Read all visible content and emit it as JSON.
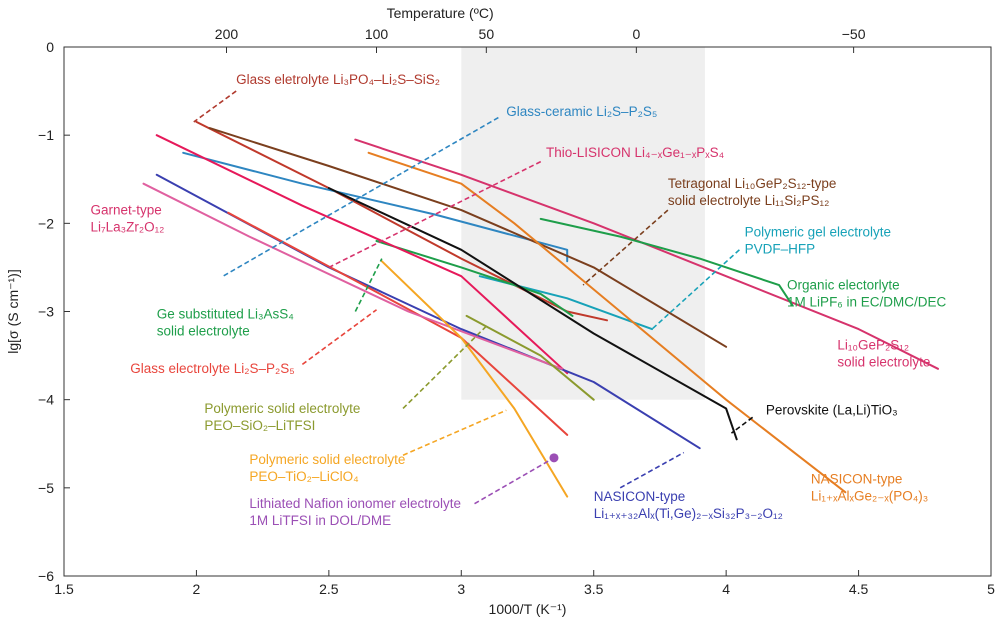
{
  "chart_data": {
    "type": "line",
    "xlabel": "1000/T (K⁻¹)",
    "ylabel": "lg[σ (S cm⁻¹)]",
    "top_axis_label": "Temperature (ºC)",
    "xlim": [
      1.5,
      5
    ],
    "ylim": [
      -6,
      0
    ],
    "x_ticks": [
      1.5,
      2,
      2.5,
      3,
      3.5,
      4,
      4.5,
      5
    ],
    "x_tick_labels": [
      "1.5",
      "2",
      "2.5",
      "3",
      "3.5",
      "4",
      "4.5",
      "5"
    ],
    "y_ticks": [
      0,
      -1,
      -2,
      -3,
      -4,
      -5,
      -6
    ],
    "y_tick_labels": [
      "0",
      "−1",
      "−2",
      "−3",
      "−4",
      "−5",
      "−6"
    ],
    "top_ticks": [
      200,
      100,
      50,
      0,
      -50
    ],
    "top_tick_labels": [
      "200",
      "100",
      "50",
      "0",
      "−50"
    ],
    "shaded_region": {
      "x": [
        3.0,
        3.92
      ],
      "y": [
        -4.0,
        0
      ]
    },
    "grid": false,
    "legend": "none",
    "series": [
      {
        "color": "#c0392b",
        "points": [
          [
            2.0,
            -0.85
          ],
          [
            2.5,
            -1.6
          ],
          [
            3.0,
            -2.4
          ],
          [
            3.4,
            -3.0
          ],
          [
            3.55,
            -3.1
          ]
        ]
      },
      {
        "color": "#2e86c1",
        "points": [
          [
            1.95,
            -1.2
          ],
          [
            2.4,
            -1.55
          ],
          [
            2.9,
            -1.9
          ],
          [
            3.4,
            -2.3
          ],
          [
            3.4,
            -2.43
          ]
        ]
      },
      {
        "color": "#d6336c",
        "points": [
          [
            2.6,
            -1.05
          ],
          [
            3.0,
            -1.45
          ],
          [
            3.5,
            -2.0
          ],
          [
            4.0,
            -2.6
          ],
          [
            4.5,
            -3.2
          ],
          [
            4.8,
            -3.65
          ]
        ]
      },
      {
        "color": "#7b3f1e",
        "points": [
          [
            2.05,
            -0.92
          ],
          [
            2.5,
            -1.35
          ],
          [
            3.0,
            -1.85
          ],
          [
            3.5,
            -2.5
          ],
          [
            4.0,
            -3.4
          ]
        ]
      },
      {
        "color": "#17a2b8",
        "points": [
          [
            3.07,
            -2.6
          ],
          [
            3.4,
            -2.85
          ],
          [
            3.72,
            -3.2
          ]
        ]
      },
      {
        "color": "#1e9e4a",
        "points": [
          [
            3.3,
            -1.95
          ],
          [
            3.6,
            -2.15
          ],
          [
            3.9,
            -2.4
          ],
          [
            4.2,
            -2.7
          ],
          [
            4.25,
            -2.93
          ]
        ]
      },
      {
        "color": "#1e9e4a",
        "points": [
          [
            2.68,
            -2.2
          ],
          [
            3.0,
            -2.5
          ],
          [
            3.3,
            -2.8
          ],
          [
            3.42,
            -3.05
          ]
        ]
      },
      {
        "color": "#e67e22",
        "points": [
          [
            2.65,
            -1.2
          ],
          [
            3.0,
            -1.55
          ],
          [
            3.2,
            -2.0
          ],
          [
            3.6,
            -3.0
          ],
          [
            4.0,
            -4.0
          ],
          [
            4.45,
            -5.05
          ]
        ]
      },
      {
        "color": "#111111",
        "points": [
          [
            2.5,
            -1.6
          ],
          [
            3.0,
            -2.3
          ],
          [
            3.5,
            -3.25
          ],
          [
            4.0,
            -4.1
          ],
          [
            4.04,
            -4.45
          ]
        ]
      },
      {
        "color": "#e6195a",
        "points": [
          [
            1.85,
            -1.0
          ],
          [
            2.4,
            -1.8
          ],
          [
            3.0,
            -2.6
          ],
          [
            3.4,
            -3.7
          ]
        ]
      },
      {
        "color": "#3a3fb0",
        "points": [
          [
            1.85,
            -1.45
          ],
          [
            2.5,
            -2.5
          ],
          [
            3.0,
            -3.2
          ],
          [
            3.5,
            -3.8
          ],
          [
            3.9,
            -4.55
          ]
        ]
      },
      {
        "color": "#e8453c",
        "points": [
          [
            2.12,
            -1.88
          ],
          [
            2.6,
            -2.65
          ],
          [
            3.0,
            -3.3
          ],
          [
            3.4,
            -4.4
          ]
        ]
      },
      {
        "color": "#e060a0",
        "points": [
          [
            1.8,
            -1.55
          ],
          [
            2.2,
            -2.15
          ],
          [
            2.8,
            -3.0
          ],
          [
            3.38,
            -3.65
          ]
        ]
      },
      {
        "color": "#8b9a2e",
        "points": [
          [
            3.02,
            -3.05
          ],
          [
            3.3,
            -3.5
          ],
          [
            3.5,
            -4.0
          ]
        ]
      },
      {
        "color": "#f5a623",
        "points": [
          [
            2.7,
            -2.43
          ],
          [
            3.0,
            -3.3
          ],
          [
            3.2,
            -4.1
          ],
          [
            3.4,
            -5.1
          ]
        ]
      }
    ],
    "marker": {
      "x": 3.35,
      "y": -4.66,
      "color": "#9b4fb5"
    },
    "annotations": [
      {
        "lines": [
          "Glass eletrolyte Li₃PO₄–Li₂S–SiS₂"
        ],
        "color": "#b03a2e",
        "ax": 2.15,
        "ay": -0.42,
        "anchor": "start",
        "leader": [
          [
            2.15,
            -0.5
          ],
          [
            1.99,
            -0.85
          ]
        ]
      },
      {
        "lines": [
          "Glass-ceramic Li₂S–P₂S₅"
        ],
        "color": "#2e86c1",
        "ax": 3.17,
        "ay": -0.78,
        "anchor": "start",
        "leader": [
          [
            3.14,
            -0.8
          ],
          [
            2.1,
            -2.6
          ]
        ]
      },
      {
        "lines": [
          "Thio-LISICON Li₄₋ₓGe₁₋ₓPₓS₄"
        ],
        "color": "#d6336c",
        "ax": 3.32,
        "ay": -1.25,
        "anchor": "start",
        "leader": [
          [
            3.3,
            -1.3
          ],
          [
            2.5,
            -2.5
          ]
        ]
      },
      {
        "lines": [
          "Tetragonal Li₁₀GeP₂S₁₂-type",
          "solid electrolyte Li₁₁Si₂PS₁₂"
        ],
        "color": "#7b3f1e",
        "ax": 3.78,
        "ay": -1.6,
        "anchor": "start",
        "leader": [
          [
            3.78,
            -1.85
          ],
          [
            3.46,
            -2.7
          ]
        ]
      },
      {
        "lines": [
          "Polymeric gel electrolyte",
          "PVDF–HFP"
        ],
        "color": "#17a2b8",
        "ax": 4.07,
        "ay": -2.15,
        "anchor": "start",
        "leader": [
          [
            4.05,
            -2.3
          ],
          [
            3.72,
            -3.2
          ]
        ]
      },
      {
        "lines": [
          "Organic electorlyte",
          "1M LiPF₆ in EC/DMC/DEC"
        ],
        "color": "#1e9e4a",
        "ax": 4.23,
        "ay": -2.75,
        "anchor": "start",
        "leader": null
      },
      {
        "lines": [
          "Garnet-type",
          "Li₇La₃Zr₂O₁₂"
        ],
        "color": "#d6336c",
        "ax": 1.6,
        "ay": -1.9,
        "anchor": "start",
        "leader": null
      },
      {
        "lines": [
          "Ge substituted Li₃AsS₄",
          "solid electrolyte"
        ],
        "color": "#1e9e4a",
        "ax": 1.85,
        "ay": -3.08,
        "anchor": "start",
        "leader": [
          [
            2.6,
            -3.0
          ],
          [
            2.7,
            -2.4
          ]
        ]
      },
      {
        "lines": [
          "Li₁₀GeP₂S₁₂",
          "solid electrolyte"
        ],
        "color": "#d6336c",
        "ax": 4.42,
        "ay": -3.43,
        "anchor": "start",
        "leader": null
      },
      {
        "lines": [
          "Glass electrolyte Li₂S–P₂S₅"
        ],
        "color": "#e8453c",
        "ax": 1.75,
        "ay": -3.7,
        "anchor": "start",
        "leader": [
          [
            2.4,
            -3.6
          ],
          [
            2.68,
            -2.98
          ]
        ]
      },
      {
        "lines": [
          "Polymeric solid electrolyte",
          "PEO–SiO₂–LiTFSI"
        ],
        "color": "#8b9a2e",
        "ax": 2.03,
        "ay": -4.15,
        "anchor": "start",
        "leader": [
          [
            2.78,
            -4.1
          ],
          [
            3.1,
            -3.15
          ]
        ]
      },
      {
        "lines": [
          "Perovskite (La,Li)TiO₃"
        ],
        "color": "#111111",
        "ax": 4.15,
        "ay": -4.17,
        "anchor": "start",
        "leader": [
          [
            4.1,
            -4.2
          ],
          [
            4.02,
            -4.38
          ]
        ]
      },
      {
        "lines": [
          "Polymeric solid electrolyte",
          "PEO–TiO₂–LiClO₄"
        ],
        "color": "#f5a623",
        "ax": 2.2,
        "ay": -4.73,
        "anchor": "start",
        "leader": [
          [
            2.78,
            -4.63
          ],
          [
            3.17,
            -4.12
          ]
        ]
      },
      {
        "lines": [
          "NASICON-type",
          "Li₁₊ₓAlₓGe₂₋ₓ(PO₄)₃"
        ],
        "color": "#e67e22",
        "ax": 4.32,
        "ay": -4.95,
        "anchor": "start",
        "leader": null
      },
      {
        "lines": [
          "Lithiated Nafion ionomer electrolyte",
          "1M LiTFSI in DOL/DME"
        ],
        "color": "#9b4fb5",
        "ax": 2.2,
        "ay": -5.23,
        "anchor": "start",
        "leader": [
          [
            3.05,
            -5.18
          ],
          [
            3.35,
            -4.66
          ]
        ]
      },
      {
        "lines": [
          "NASICON-type",
          "Li₁₊ₓ₊₃₂Alₓ(Ti,Ge)₂₋ₓSi₃₂P₃₋₂O₁₂"
        ],
        "color": "#3a3fb0",
        "ax": 3.5,
        "ay": -5.15,
        "anchor": "start",
        "leader": [
          [
            3.6,
            -5.0
          ],
          [
            3.84,
            -4.6
          ]
        ]
      }
    ]
  }
}
